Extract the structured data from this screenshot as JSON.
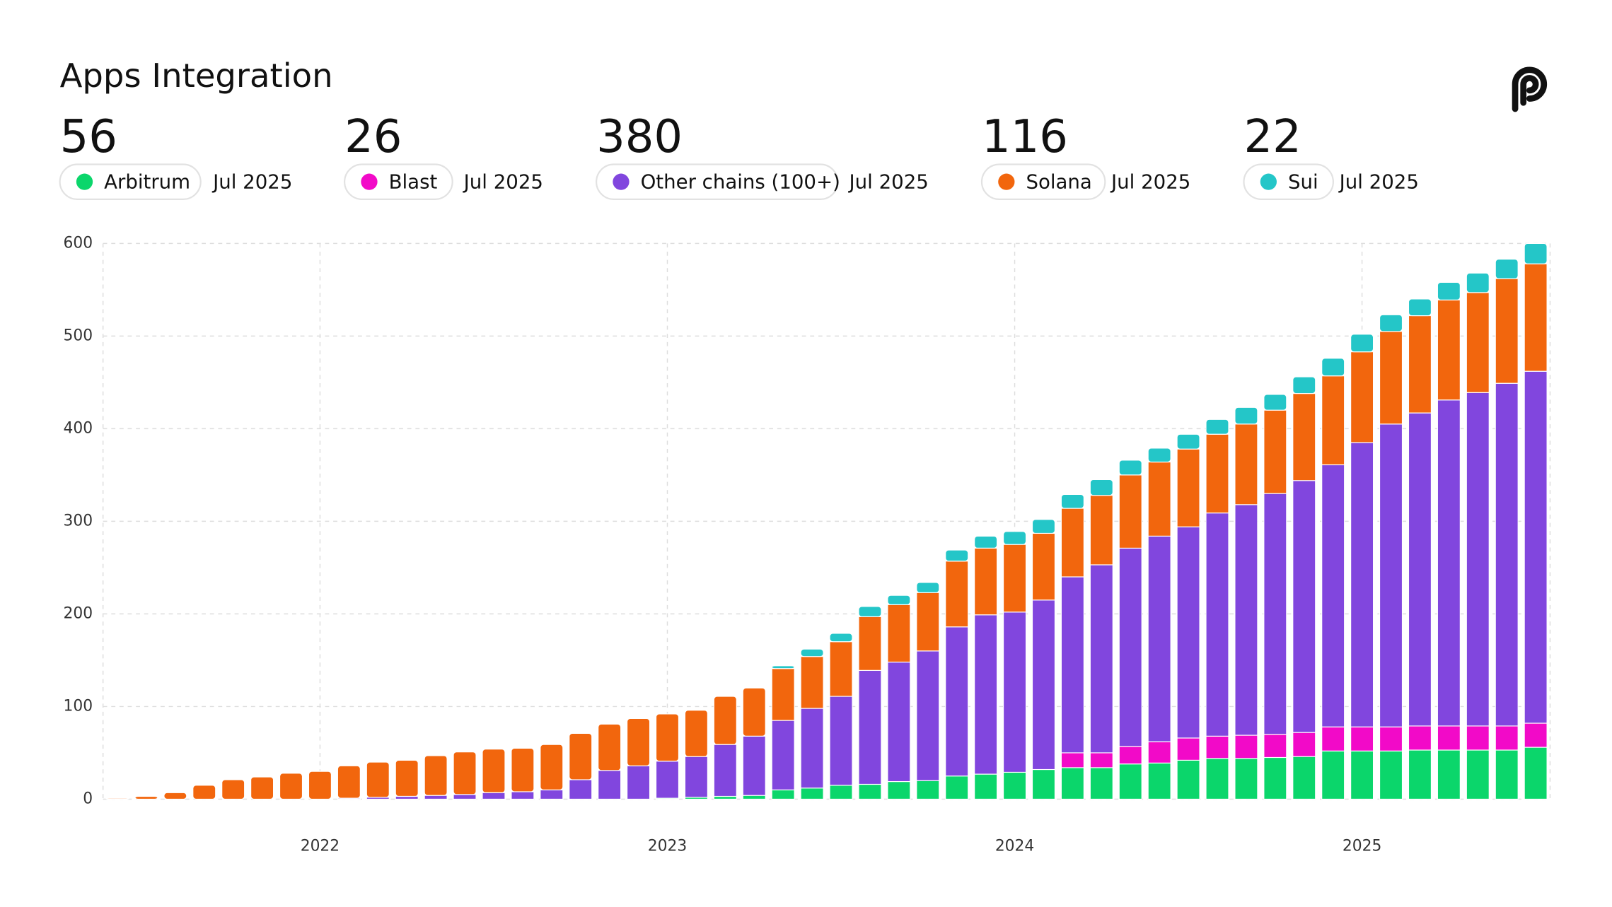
{
  "chart_data": {
    "type": "stacked_bar",
    "title": "Apps Integration",
    "x": [
      "Jun 2021",
      "Jul 2021",
      "Aug 2021",
      "Sep 2021",
      "Oct 2021",
      "Nov 2021",
      "Dec 2021",
      "Jan 2022",
      "Feb 2022",
      "Mar 2022",
      "Apr 2022",
      "May 2022",
      "Jun 2022",
      "Jul 2022",
      "Aug 2022",
      "Sep 2022",
      "Oct 2022",
      "Nov 2022",
      "Dec 2022",
      "Jan 2023",
      "Feb 2023",
      "Mar 2023",
      "Apr 2023",
      "May 2023",
      "Jun 2023",
      "Jul 2023",
      "Aug 2023",
      "Sep 2023",
      "Oct 2023",
      "Nov 2023",
      "Dec 2023",
      "Jan 2024",
      "Feb 2024",
      "Mar 2024",
      "Apr 2024",
      "May 2024",
      "Jun 2024",
      "Jul 2024",
      "Aug 2024",
      "Sep 2024",
      "Oct 2024",
      "Nov 2024",
      "Dec 2024",
      "Jan 2025",
      "Feb 2025",
      "Mar 2025",
      "Apr 2025",
      "May 2025",
      "Jun 2025",
      "Jul 2025"
    ],
    "series": [
      {
        "name": "Arbitrum",
        "color": "#0bd66b",
        "values": [
          0,
          0,
          0,
          0,
          0,
          0,
          0,
          0,
          0,
          0,
          0,
          0,
          0,
          0,
          0,
          0,
          0,
          0,
          0,
          1,
          2,
          3,
          4,
          10,
          12,
          15,
          16,
          19,
          20,
          25,
          27,
          29,
          32,
          34,
          34,
          38,
          39,
          42,
          44,
          44,
          45,
          46,
          52,
          52,
          52,
          53,
          53,
          53,
          53,
          56
        ]
      },
      {
        "name": "Blast",
        "color": "#f20ac8",
        "values": [
          0,
          0,
          0,
          0,
          0,
          0,
          0,
          0,
          0,
          0,
          0,
          0,
          0,
          0,
          0,
          0,
          0,
          0,
          0,
          0,
          0,
          0,
          0,
          0,
          0,
          0,
          0,
          0,
          0,
          0,
          0,
          0,
          0,
          16,
          16,
          19,
          23,
          24,
          24,
          25,
          25,
          26,
          26,
          26,
          26,
          26,
          26,
          26,
          26,
          26
        ]
      },
      {
        "name": "Other chains (100+)",
        "color": "#8146de",
        "values": [
          0,
          0,
          0,
          0,
          0,
          0,
          0,
          0,
          1,
          2,
          3,
          4,
          5,
          7,
          8,
          10,
          21,
          31,
          36,
          40,
          44,
          56,
          64,
          75,
          86,
          96,
          123,
          129,
          140,
          161,
          172,
          173,
          183,
          190,
          203,
          214,
          222,
          228,
          241,
          249,
          260,
          272,
          283,
          307,
          327,
          338,
          352,
          360,
          370,
          380
        ]
      },
      {
        "name": "Solana",
        "color": "#f2660d",
        "values": [
          1,
          3,
          7,
          15,
          21,
          24,
          28,
          30,
          35,
          38,
          39,
          43,
          46,
          47,
          47,
          49,
          50,
          50,
          51,
          51,
          50,
          52,
          52,
          56,
          56,
          59,
          58,
          62,
          63,
          71,
          72,
          73,
          72,
          74,
          75,
          79,
          80,
          84,
          85,
          87,
          90,
          94,
          96,
          98,
          100,
          105,
          108,
          108,
          113,
          116
        ]
      },
      {
        "name": "Sui",
        "color": "#24c6c8",
        "values": [
          0,
          0,
          0,
          0,
          0,
          0,
          0,
          0,
          0,
          0,
          0,
          0,
          0,
          0,
          0,
          0,
          0,
          0,
          0,
          0,
          0,
          0,
          0,
          3,
          8,
          9,
          11,
          10,
          11,
          12,
          13,
          14,
          15,
          15,
          17,
          16,
          15,
          16,
          16,
          18,
          17,
          18,
          19,
          19,
          18,
          18,
          19,
          21,
          21,
          22
        ]
      }
    ],
    "ylim": [
      0,
      600
    ],
    "yticks": [
      0,
      100,
      200,
      300,
      400,
      500,
      600
    ],
    "xticks": [
      {
        "value": "Jan 2022",
        "label": "2022"
      },
      {
        "value": "Jan 2023",
        "label": "2023"
      },
      {
        "value": "Jan 2024",
        "label": "2024"
      },
      {
        "value": "Jan 2025",
        "label": "2025"
      }
    ],
    "grid": true
  }
}
